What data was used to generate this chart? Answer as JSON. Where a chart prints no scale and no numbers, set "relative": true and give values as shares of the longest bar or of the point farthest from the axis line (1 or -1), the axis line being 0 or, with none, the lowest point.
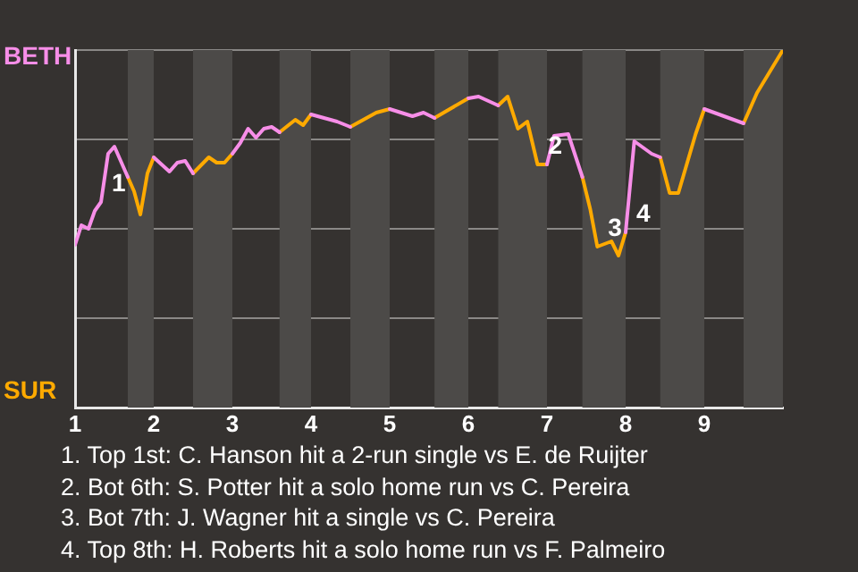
{
  "chart_data": {
    "type": "line",
    "legend": false,
    "grid": "y",
    "marker": "none",
    "line_style": "solid",
    "relative": true,
    "xlim": [
      1,
      10
    ],
    "xticks": [
      1,
      2,
      3,
      4,
      5,
      6,
      7,
      8,
      9
    ],
    "bands": [
      {
        "axis": "x",
        "from": 1.67,
        "to": 2,
        "color": "#4c4a48"
      },
      {
        "axis": "x",
        "from": 2.5,
        "to": 3,
        "color": "#4c4a48"
      },
      {
        "axis": "x",
        "from": 3.6,
        "to": 4,
        "color": "#4c4a48"
      },
      {
        "axis": "x",
        "from": 4.5,
        "to": 5,
        "color": "#4c4a48"
      },
      {
        "axis": "x",
        "from": 5.57,
        "to": 6,
        "color": "#4c4a48"
      },
      {
        "axis": "x",
        "from": 6.38,
        "to": 7,
        "color": "#4c4a48"
      },
      {
        "axis": "x",
        "from": 7.45,
        "to": 8,
        "color": "#4c4a48"
      },
      {
        "axis": "x",
        "from": 8.44,
        "to": 9,
        "color": "#4c4a48"
      },
      {
        "axis": "x",
        "from": 9.5,
        "to": 10,
        "color": "#4c4a48"
      }
    ],
    "series": [
      {
        "color": "#f78ee8",
        "x": [
          1,
          1.08,
          1.17,
          1.25,
          1.33,
          1.42,
          1.5,
          1.67,
          null,
          2,
          2.2,
          2.3,
          2.4,
          2.5,
          null,
          3,
          3.1,
          3.2,
          3.3,
          3.4,
          3.5,
          3.6,
          null,
          4,
          4.33,
          4.5,
          null,
          5,
          5.29,
          5.43,
          5.57,
          null,
          6,
          6.13,
          6.38,
          null,
          7,
          7.09,
          7.27,
          7.45,
          null,
          8,
          8.11,
          8.33,
          8.44,
          null,
          9,
          9.5
        ],
        "values": [
          0.455,
          0.51,
          0.5,
          0.55,
          0.575,
          0.71,
          0.73,
          0.645,
          null,
          0.7,
          0.66,
          0.685,
          0.69,
          0.655,
          null,
          0.71,
          0.74,
          0.78,
          0.755,
          0.78,
          0.785,
          0.77,
          null,
          0.82,
          0.8,
          0.785,
          null,
          0.835,
          0.815,
          0.825,
          0.81,
          null,
          0.865,
          0.87,
          0.845,
          null,
          0.68,
          0.76,
          0.765,
          0.645,
          null,
          0.49,
          0.745,
          0.71,
          0.7,
          null,
          0.835,
          0.795
        ]
      },
      {
        "color": "#ffaa00",
        "x": [
          1.67,
          1.75,
          1.83,
          1.92,
          2,
          null,
          2.5,
          2.7,
          2.8,
          2.9,
          3,
          null,
          3.6,
          3.8,
          3.9,
          4,
          null,
          4.5,
          4.83,
          5,
          null,
          5.57,
          6,
          null,
          6.38,
          6.5,
          6.63,
          6.75,
          6.88,
          7,
          null,
          7.45,
          7.55,
          7.64,
          7.82,
          7.91,
          8,
          null,
          8.44,
          8.56,
          8.67,
          8.89,
          9,
          null,
          9.5,
          9.67,
          10
        ],
        "values": [
          0.645,
          0.605,
          0.54,
          0.655,
          0.7,
          null,
          0.655,
          0.7,
          0.685,
          0.685,
          0.71,
          null,
          0.77,
          0.805,
          0.79,
          0.82,
          null,
          0.785,
          0.825,
          0.835,
          null,
          0.81,
          0.865,
          null,
          0.845,
          0.87,
          0.78,
          0.8,
          0.68,
          0.68,
          null,
          0.645,
          0.555,
          0.45,
          0.465,
          0.425,
          0.49,
          null,
          0.7,
          0.6,
          0.6,
          0.765,
          0.835,
          null,
          0.795,
          0.88,
          1.0
        ]
      }
    ],
    "annotations": [
      "BETH",
      "SUR",
      {
        "text": "1",
        "x": 1.33,
        "y": 0.575
      },
      {
        "text": "2",
        "x": 6.88,
        "y": 0.68
      },
      {
        "text": "3",
        "x": 7.64,
        "y": 0.45
      },
      {
        "text": "4",
        "x": 8,
        "y": 0.49
      },
      "1. Top 1st: C. Hanson hit a 2-run single vs E. de Ruijter",
      "2. Bot 6th: S. Potter hit a solo home run vs C. Pereira",
      "3. Bot 7th: J. Wagner hit a single vs C. Pereira",
      "4. Top 8th: H. Roberts hit a solo home run vs F. Palmeiro"
    ]
  }
}
